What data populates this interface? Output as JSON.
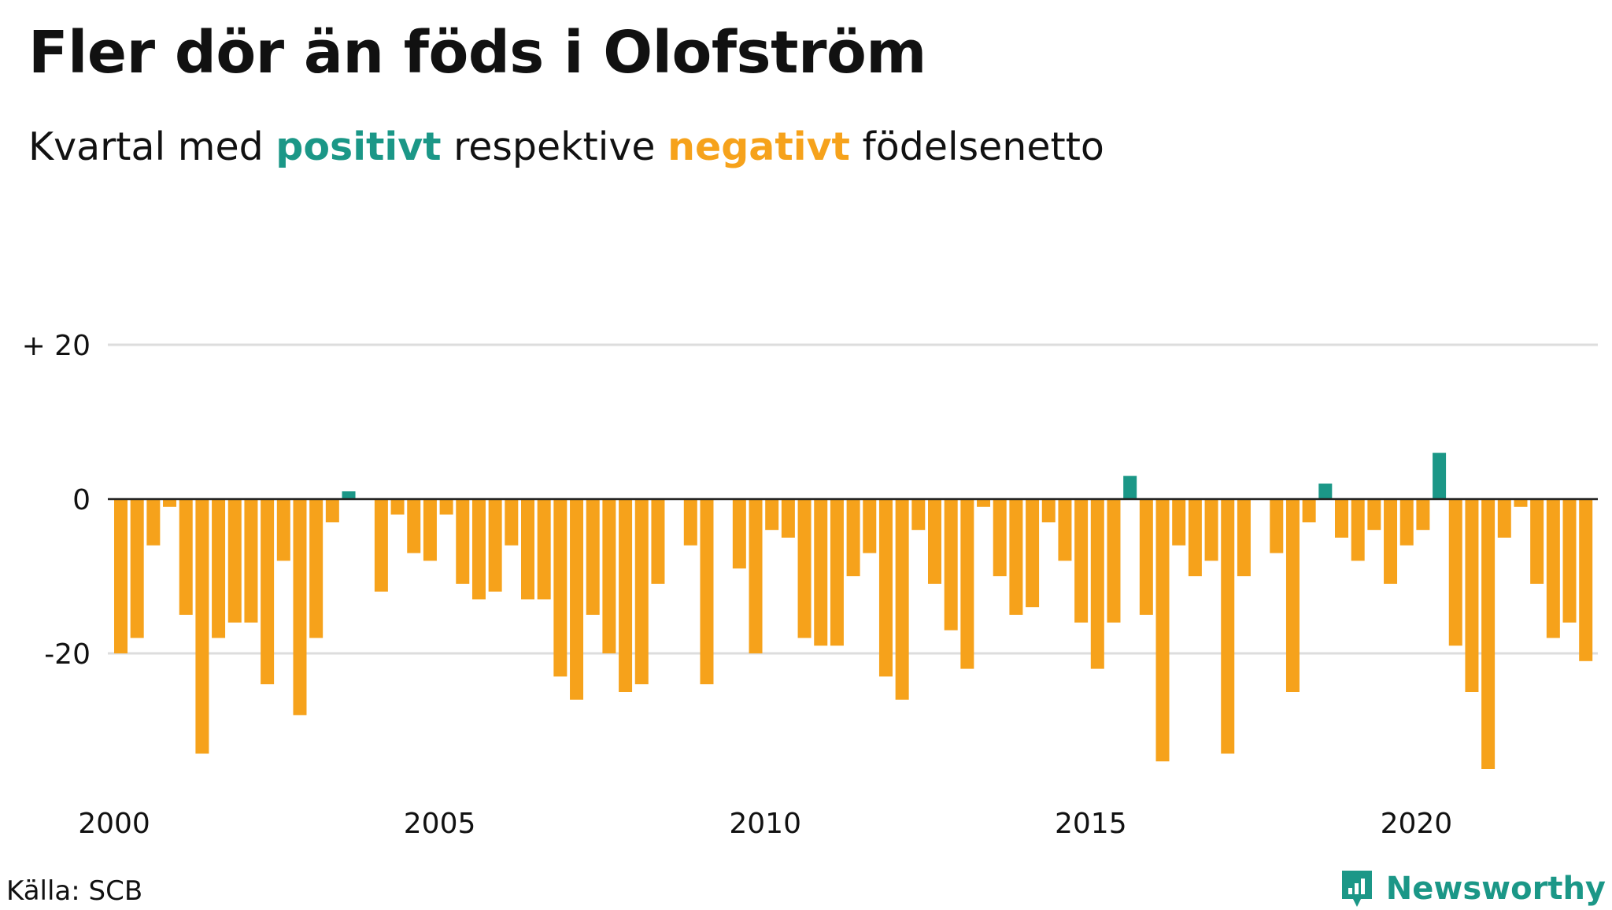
{
  "title": "Fler dör än föds i Olofström",
  "subtitle": {
    "prefix": "Kvartal med ",
    "positive": "positivt",
    "middle": " respektive ",
    "negative": "negativt",
    "suffix": " födelsenetto"
  },
  "source": "Källa: SCB",
  "brand": "Newsworthy",
  "colors": {
    "positive": "#1b9787",
    "negative": "#f6a21b",
    "grid": "#dddddd",
    "text": "#111111"
  },
  "chart_data": {
    "type": "bar",
    "x_start": "2000 Q1",
    "x_tick_labels": [
      "2000",
      "2005",
      "2010",
      "2015",
      "2020"
    ],
    "y_ticks": [
      20,
      0,
      -20
    ],
    "y_tick_labels": [
      "+ 20",
      "0",
      "-20"
    ],
    "ylim": [
      -38,
      20
    ],
    "grid": true,
    "values": [
      -20,
      -18,
      -6,
      -1,
      -15,
      -33,
      -18,
      -16,
      -16,
      -24,
      -8,
      -28,
      -18,
      -3,
      1,
      0,
      -12,
      -2,
      -7,
      -8,
      -2,
      -11,
      -13,
      -12,
      -6,
      -13,
      -13,
      -23,
      -26,
      -15,
      -20,
      -25,
      -24,
      -11,
      0,
      -6,
      -24,
      0,
      -9,
      -20,
      -4,
      -5,
      -18,
      -19,
      -19,
      -10,
      -7,
      -23,
      -26,
      -4,
      -11,
      -17,
      -22,
      -1,
      -10,
      -15,
      -14,
      -3,
      -8,
      -16,
      -22,
      -16,
      3,
      -15,
      -34,
      -6,
      -10,
      -8,
      -33,
      -10,
      0,
      -7,
      -25,
      -3,
      2,
      -5,
      -8,
      -4,
      -11,
      -6,
      -4,
      6,
      -19,
      -25,
      -35,
      -5,
      -1,
      -11,
      -18,
      -16,
      -21
    ]
  }
}
